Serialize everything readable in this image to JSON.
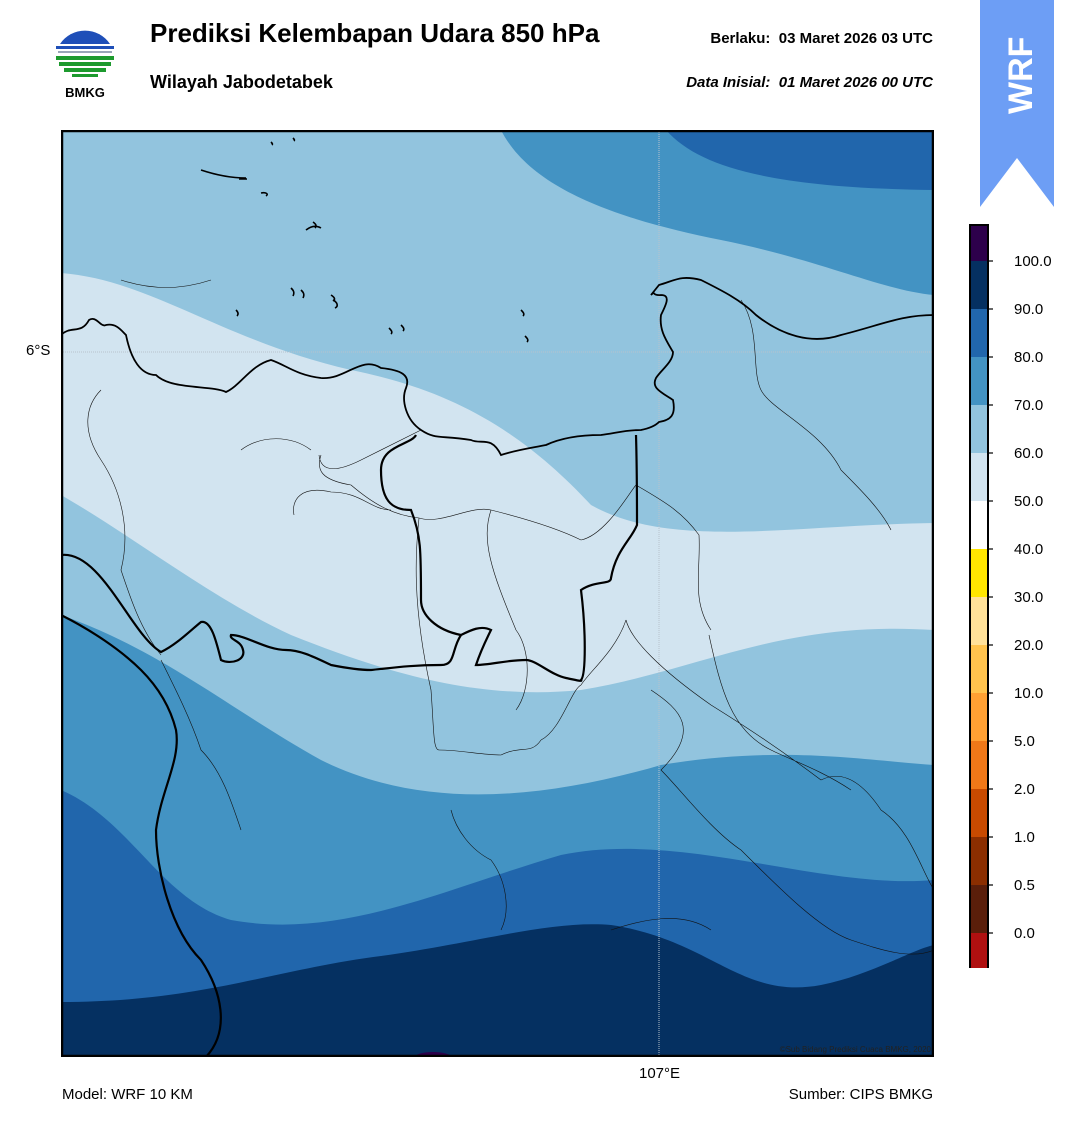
{
  "header": {
    "logo_text": "BMKG",
    "title": "Prediksi Kelembapan Udara 850 hPa",
    "subtitle": "Wilayah Jabodetabek",
    "valid_label": "Berlaku:",
    "valid_time": "03 Maret 2026 03 UTC",
    "init_label": "Data Inisial:",
    "init_time": "01 Maret 2026 00 UTC",
    "badge": "WRF"
  },
  "map": {
    "lat_label": "6°S",
    "lon_label": "107°E",
    "credit": "©Sub Bidang Prediksi Cuaca BMKG, 2020",
    "colors": {
      "c50": "#d2e4f0",
      "c60": "#92c4de",
      "c70": "#4393c3",
      "c80": "#2166ac",
      "c90": "#053061"
    }
  },
  "colorbar": {
    "ticks": [
      "100.0",
      "90.0",
      "80.0",
      "70.0",
      "60.0",
      "50.0",
      "40.0",
      "30.0",
      "20.0",
      "10.0",
      "5.0",
      "2.0",
      "1.0",
      "0.5",
      "0.0"
    ],
    "colors": [
      "#2d004b",
      "#053061",
      "#2166ac",
      "#4393c3",
      "#92c4de",
      "#d2e4f0",
      "#ffffff",
      "#ffe600",
      "#ffe199",
      "#ffc34d",
      "#ffa033",
      "#f07818",
      "#c84a00",
      "#8b2e00",
      "#5a1e0a",
      "#b01010",
      "#e83030"
    ]
  },
  "footer": {
    "model": "Model: WRF 10 KM",
    "source": "Sumber: CIPS BMKG"
  }
}
